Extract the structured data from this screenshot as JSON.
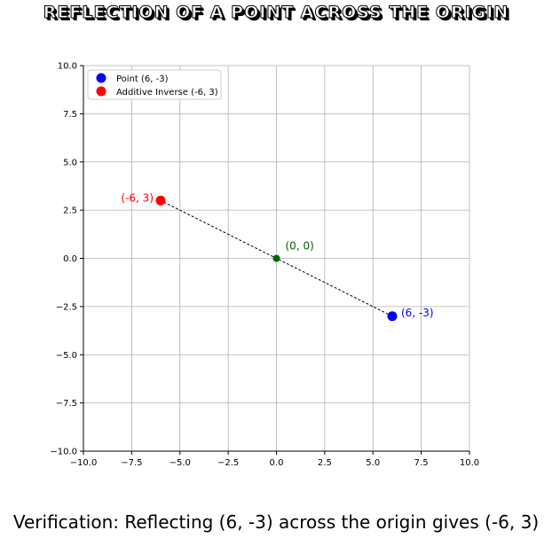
{
  "chart_data": {
    "type": "scatter",
    "title": "Reflection of a Point Across the Origin",
    "xlim": [
      -10,
      10
    ],
    "ylim": [
      -10,
      10
    ],
    "grid": true,
    "xticks": [
      "−10.0",
      "−7.5",
      "−5.0",
      "−2.5",
      "0.0",
      "2.5",
      "5.0",
      "7.5",
      "10.0"
    ],
    "yticks": [
      "−10.0",
      "−7.5",
      "−5.0",
      "−2.5",
      "0.0",
      "2.5",
      "5.0",
      "7.5",
      "10.0"
    ],
    "tick_values": [
      -10,
      -7.5,
      -5,
      -2.5,
      0,
      2.5,
      5,
      7.5,
      10
    ],
    "legend_position": "top-left",
    "points": [
      {
        "name": "Point (6, -3)",
        "x": 6,
        "y": -3,
        "color": "#0000ff",
        "label": "(6, -3)"
      },
      {
        "name": "Additive Inverse (-6, 3)",
        "x": -6,
        "y": 3,
        "color": "#ff0000",
        "label": "(-6, 3)"
      },
      {
        "name": "origin",
        "x": 0,
        "y": 0,
        "color": "#006400",
        "label": "(0, 0)"
      }
    ],
    "line": {
      "from": [
        6,
        -3
      ],
      "to": [
        -6,
        3
      ],
      "style": "dashed",
      "color": "#000000"
    },
    "legend": [
      "Point (6, -3)",
      "Additive Inverse (-6, 3)"
    ]
  },
  "footer": "Verification: Reflecting (6, -3) across the origin gives (-6, 3)"
}
